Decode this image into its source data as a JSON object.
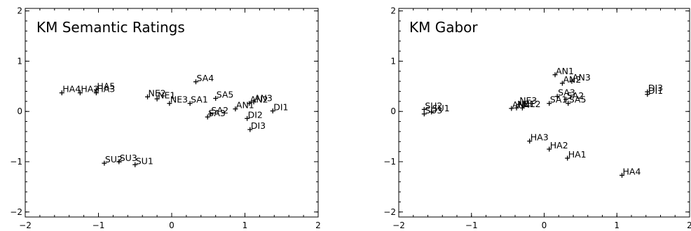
{
  "chart_data": [
    {
      "type": "scatter",
      "title": "KM Semantic Ratings",
      "xlabel": "",
      "ylabel": "",
      "xlim": [
        -2,
        2
      ],
      "ylim": [
        -2.1,
        2.05
      ],
      "xticks": [
        "−2",
        "−1",
        "0",
        "1",
        "2"
      ],
      "yticks": [
        "−2",
        "−1",
        "0",
        "1",
        "2"
      ],
      "grid": false,
      "points": [
        {
          "label": "HA4",
          "x": -1.5,
          "y": 0.37
        },
        {
          "label": "HA2",
          "x": -1.25,
          "y": 0.37
        },
        {
          "label": "HA3",
          "x": -1.03,
          "y": 0.37
        },
        {
          "label": "HA5",
          "x": -1.03,
          "y": 0.43
        },
        {
          "label": "NE2",
          "x": -0.33,
          "y": 0.29
        },
        {
          "label": "NE1",
          "x": -0.2,
          "y": 0.25
        },
        {
          "label": "NE3",
          "x": -0.03,
          "y": 0.16
        },
        {
          "label": "SA1",
          "x": 0.25,
          "y": 0.16
        },
        {
          "label": "SA4",
          "x": 0.33,
          "y": 0.59
        },
        {
          "label": "SA5",
          "x": 0.6,
          "y": 0.26
        },
        {
          "label": "SA2",
          "x": 0.53,
          "y": -0.05
        },
        {
          "label": "SA3",
          "x": 0.49,
          "y": -0.11
        },
        {
          "label": "AN1",
          "x": 0.87,
          "y": 0.05
        },
        {
          "label": "AN2",
          "x": 1.06,
          "y": 0.16
        },
        {
          "label": "AN3",
          "x": 1.12,
          "y": 0.19
        },
        {
          "label": "DI2",
          "x": 1.03,
          "y": -0.14
        },
        {
          "label": "DI3",
          "x": 1.07,
          "y": -0.36
        },
        {
          "label": "DI1",
          "x": 1.38,
          "y": 0.01
        },
        {
          "label": "SU2",
          "x": -0.92,
          "y": -1.03
        },
        {
          "label": "SU3",
          "x": -0.72,
          "y": -1.0
        },
        {
          "label": "SU1",
          "x": -0.5,
          "y": -1.06
        }
      ]
    },
    {
      "type": "scatter",
      "title": "KM Gabor",
      "xlabel": "",
      "ylabel": "",
      "xlim": [
        -2,
        2
      ],
      "ylim": [
        -2.1,
        2.05
      ],
      "xticks": [
        "−2",
        "−1",
        "0",
        "1",
        "2"
      ],
      "yticks": [
        "−2",
        "−1",
        "0",
        "1",
        "2"
      ],
      "grid": false,
      "points": [
        {
          "label": "SU2",
          "x": -1.65,
          "y": 0.04
        },
        {
          "label": "SU1",
          "x": -1.55,
          "y": -0.01
        },
        {
          "label": "SU3",
          "x": -1.65,
          "y": -0.05
        },
        {
          "label": "AN4",
          "x": -0.45,
          "y": 0.06
        },
        {
          "label": "NE3",
          "x": -0.35,
          "y": 0.14
        },
        {
          "label": "NE1",
          "x": -0.38,
          "y": 0.07
        },
        {
          "label": "NE2",
          "x": -0.3,
          "y": 0.07
        },
        {
          "label": "AN1",
          "x": 0.15,
          "y": 0.73
        },
        {
          "label": "AN3",
          "x": 0.38,
          "y": 0.6
        },
        {
          "label": "AN2",
          "x": 0.25,
          "y": 0.56
        },
        {
          "label": "SA3",
          "x": 0.18,
          "y": 0.3
        },
        {
          "label": "SA2",
          "x": 0.3,
          "y": 0.24
        },
        {
          "label": "SA1",
          "x": 0.07,
          "y": 0.16
        },
        {
          "label": "SA5",
          "x": 0.33,
          "y": 0.16
        },
        {
          "label": "DI3",
          "x": 1.42,
          "y": 0.39
        },
        {
          "label": "DI1",
          "x": 1.42,
          "y": 0.34
        },
        {
          "label": "HA3",
          "x": -0.2,
          "y": -0.59
        },
        {
          "label": "HA2",
          "x": 0.07,
          "y": -0.75
        },
        {
          "label": "HA1",
          "x": 0.32,
          "y": -0.93
        },
        {
          "label": "HA4",
          "x": 1.07,
          "y": -1.27
        }
      ]
    }
  ]
}
